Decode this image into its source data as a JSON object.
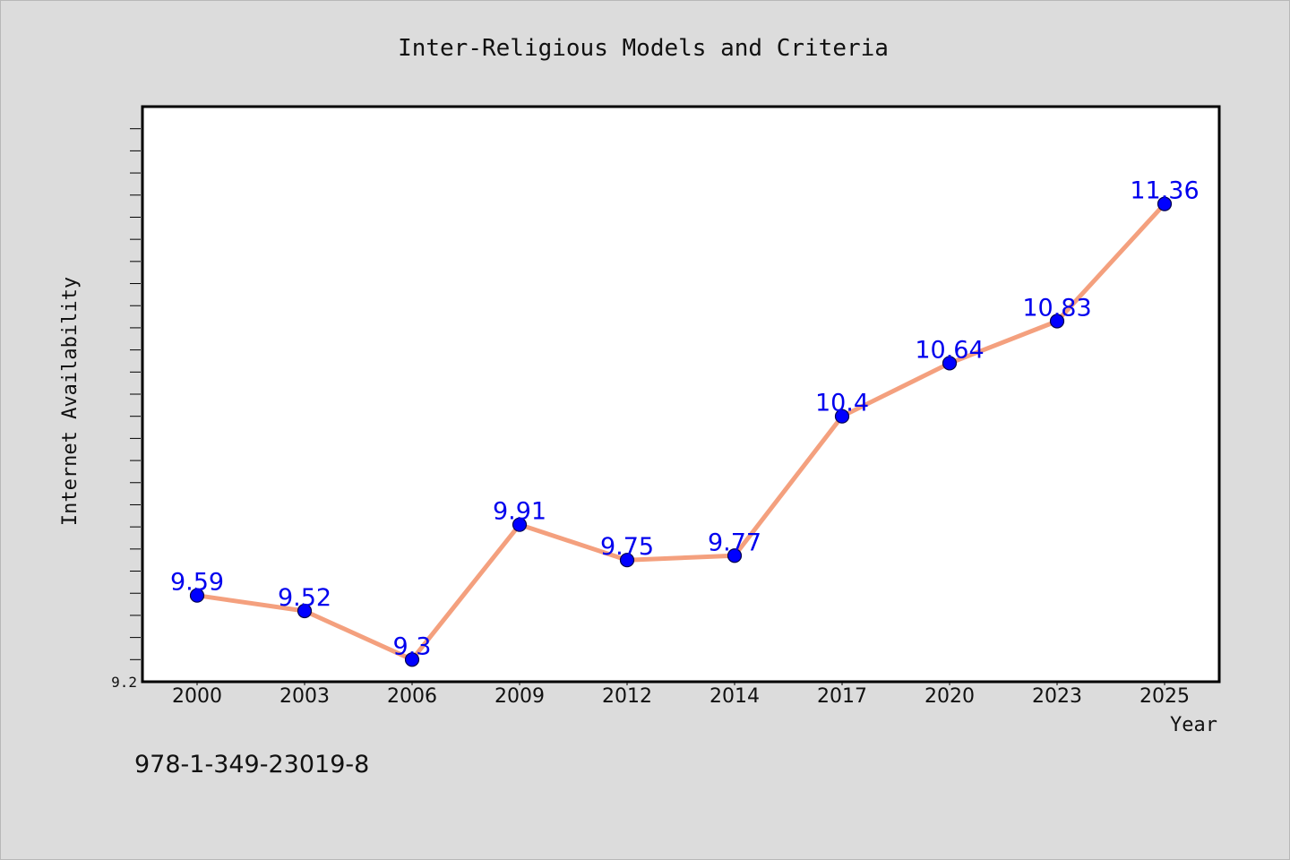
{
  "chart_data": {
    "type": "line",
    "title": "Inter-Religious Models and Criteria",
    "xlabel": "Year",
    "ylabel": "Internet Availability",
    "categories": [
      "2000",
      "2003",
      "2006",
      "2009",
      "2012",
      "2014",
      "2017",
      "2020",
      "2023",
      "2025"
    ],
    "series": [
      {
        "values": [
          9.59,
          9.52,
          9.3,
          9.91,
          9.75,
          9.77,
          10.4,
          10.64,
          10.83,
          11.36
        ],
        "labels": [
          "9.59",
          "9.52",
          "9.3",
          "9.91",
          "9.75",
          "9.77",
          "10.4",
          "10.64",
          "10.83",
          "11.36"
        ]
      }
    ],
    "ylim": [
      9.2,
      11.8
    ],
    "yticks": [
      "9.2"
    ],
    "grid": false,
    "line_color": "#f4a07e",
    "marker_color": "#0000ff",
    "label_color": "#0000ee",
    "plot_background": "#ffffff",
    "page_background": "#dcdcdc"
  },
  "footer": {
    "isbn": "978-1-349-23019-8"
  }
}
